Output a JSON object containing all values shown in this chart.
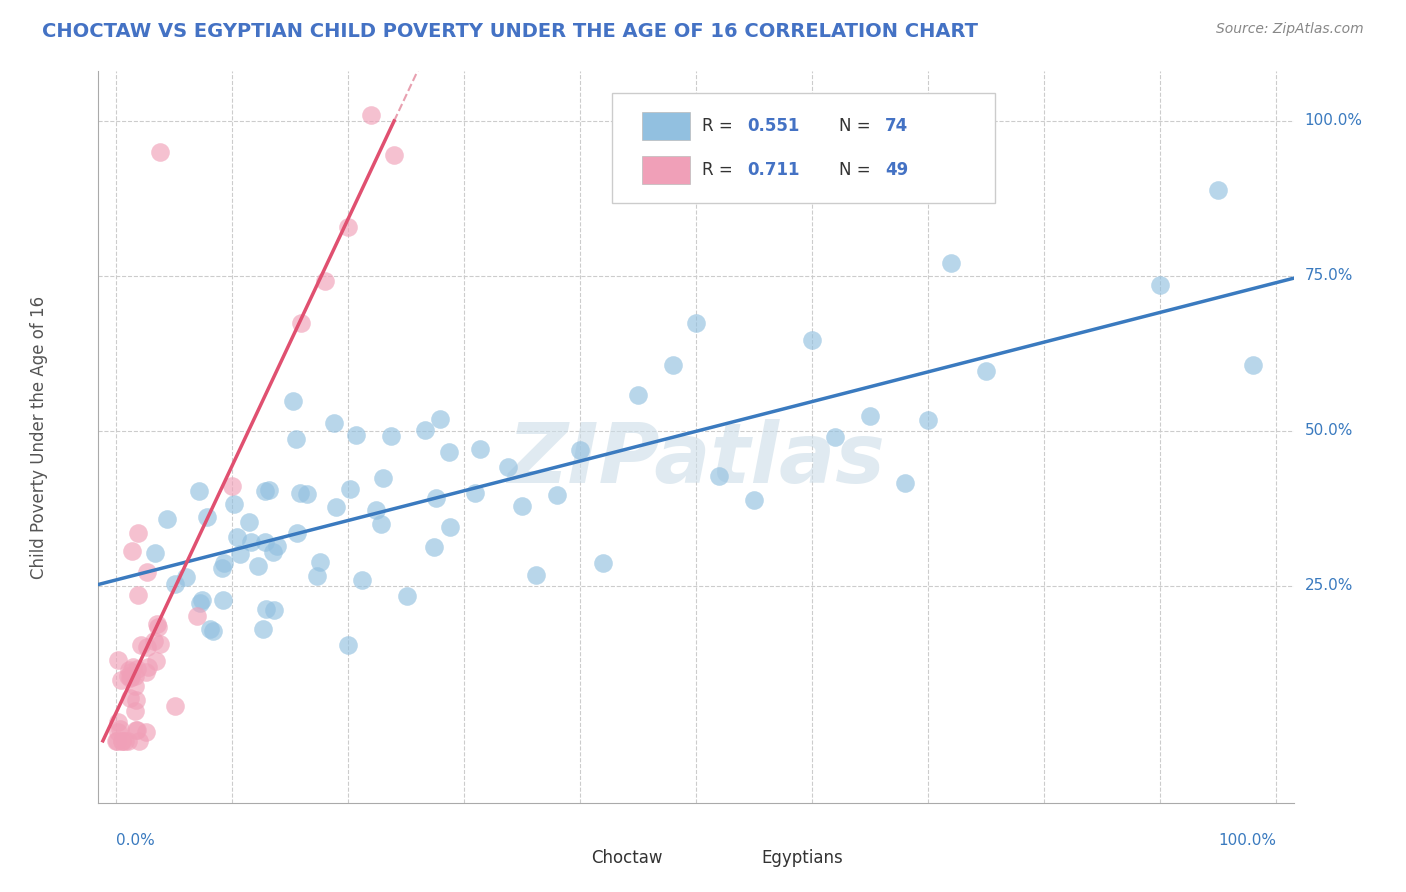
{
  "title": "CHOCTAW VS EGYPTIAN CHILD POVERTY UNDER THE AGE OF 16 CORRELATION CHART",
  "source": "Source: ZipAtlas.com",
  "ylabel": "Child Poverty Under the Age of 16",
  "ytick_labels": [
    "25.0%",
    "50.0%",
    "75.0%",
    "100.0%"
  ],
  "ytick_vals": [
    0.25,
    0.5,
    0.75,
    1.0
  ],
  "choctaw_color": "#92c0e0",
  "egyptian_color": "#f0a0b8",
  "blue_line_color": "#3a7abf",
  "pink_line_color": "#e05070",
  "pink_line_dashed_color": "#e8a0b0",
  "watermark": "ZIPatlas",
  "watermark_color": "#ccdde8",
  "background_color": "#ffffff",
  "title_color": "#4472c4",
  "source_color": "#888888",
  "legend_text_color": "#333333",
  "legend_value_color": "#4472c4",
  "choctaw_R": 0.551,
  "choctaw_N": 74,
  "egyptian_R": 0.711,
  "egyptian_N": 49,
  "seed": 42
}
